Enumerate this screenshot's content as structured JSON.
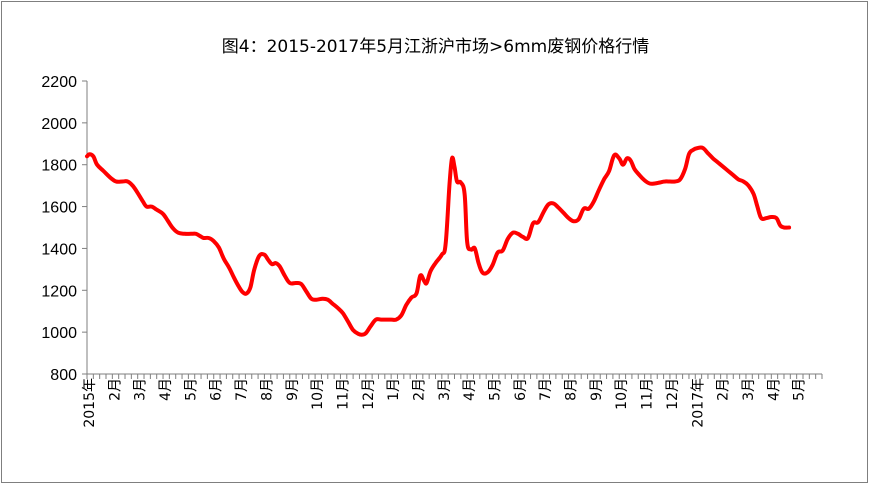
{
  "chart_data": {
    "type": "line",
    "title": "图4：2015-2017年5月江浙沪市场>6mm废钢价格行情",
    "xlabel": "",
    "ylabel": "",
    "ylim": [
      800,
      2200
    ],
    "yticks": [
      800,
      1000,
      1200,
      1400,
      1600,
      1800,
      2000,
      2200
    ],
    "x_labels": [
      "2015年",
      "2月",
      "3月",
      "4月",
      "5月",
      "6月",
      "7月",
      "8月",
      "9月",
      "10月",
      "11月",
      "12月",
      "1月",
      "2月",
      "3月",
      "4月",
      "5月",
      "6月",
      "7月",
      "8月",
      "9月",
      "10月",
      "11月",
      "12月",
      "2017年",
      "2月",
      "3月",
      "4月",
      "5月"
    ],
    "grid": false,
    "legend": "none",
    "colors": {
      "line": "#ff0000",
      "axis": "#7f7f7f"
    },
    "series": [
      {
        "values": [
          [
            0.0,
            1840
          ],
          [
            0.1,
            1850
          ],
          [
            0.25,
            1840
          ],
          [
            0.4,
            1800
          ],
          [
            0.65,
            1770
          ],
          [
            0.95,
            1735
          ],
          [
            1.15,
            1720
          ],
          [
            1.4,
            1720
          ],
          [
            1.6,
            1720
          ],
          [
            1.8,
            1700
          ],
          [
            2.0,
            1665
          ],
          [
            2.2,
            1625
          ],
          [
            2.35,
            1600
          ],
          [
            2.55,
            1600
          ],
          [
            2.75,
            1585
          ],
          [
            3.0,
            1565
          ],
          [
            3.2,
            1530
          ],
          [
            3.4,
            1495
          ],
          [
            3.6,
            1475
          ],
          [
            3.85,
            1470
          ],
          [
            4.1,
            1470
          ],
          [
            4.3,
            1470
          ],
          [
            4.45,
            1460
          ],
          [
            4.6,
            1450
          ],
          [
            4.8,
            1450
          ],
          [
            5.0,
            1435
          ],
          [
            5.2,
            1405
          ],
          [
            5.4,
            1350
          ],
          [
            5.6,
            1310
          ],
          [
            5.8,
            1260
          ],
          [
            6.0,
            1215
          ],
          [
            6.15,
            1190
          ],
          [
            6.3,
            1185
          ],
          [
            6.45,
            1215
          ],
          [
            6.6,
            1300
          ],
          [
            6.8,
            1365
          ],
          [
            7.0,
            1370
          ],
          [
            7.15,
            1345
          ],
          [
            7.3,
            1325
          ],
          [
            7.45,
            1330
          ],
          [
            7.6,
            1315
          ],
          [
            7.8,
            1270
          ],
          [
            8.0,
            1235
          ],
          [
            8.25,
            1235
          ],
          [
            8.45,
            1230
          ],
          [
            8.65,
            1195
          ],
          [
            8.85,
            1160
          ],
          [
            9.05,
            1155
          ],
          [
            9.3,
            1160
          ],
          [
            9.5,
            1155
          ],
          [
            9.7,
            1135
          ],
          [
            9.9,
            1115
          ],
          [
            10.1,
            1090
          ],
          [
            10.3,
            1050
          ],
          [
            10.5,
            1010
          ],
          [
            10.7,
            992
          ],
          [
            10.85,
            988
          ],
          [
            11.0,
            995
          ],
          [
            11.2,
            1030
          ],
          [
            11.4,
            1060
          ],
          [
            11.6,
            1060
          ],
          [
            11.8,
            1060
          ],
          [
            12.0,
            1060
          ],
          [
            12.2,
            1060
          ],
          [
            12.4,
            1080
          ],
          [
            12.6,
            1130
          ],
          [
            12.8,
            1165
          ],
          [
            13.0,
            1185
          ],
          [
            13.15,
            1270
          ],
          [
            13.3,
            1245
          ],
          [
            13.4,
            1235
          ],
          [
            13.55,
            1290
          ],
          [
            13.75,
            1330
          ],
          [
            14.0,
            1370
          ],
          [
            14.15,
            1420
          ],
          [
            14.3,
            1700
          ],
          [
            14.4,
            1830
          ],
          [
            14.5,
            1790
          ],
          [
            14.6,
            1720
          ],
          [
            14.75,
            1715
          ],
          [
            14.9,
            1660
          ],
          [
            15.0,
            1430
          ],
          [
            15.15,
            1395
          ],
          [
            15.3,
            1400
          ],
          [
            15.45,
            1330
          ],
          [
            15.6,
            1285
          ],
          [
            15.8,
            1285
          ],
          [
            16.0,
            1320
          ],
          [
            16.2,
            1380
          ],
          [
            16.4,
            1390
          ],
          [
            16.6,
            1445
          ],
          [
            16.8,
            1475
          ],
          [
            17.0,
            1470
          ],
          [
            17.2,
            1455
          ],
          [
            17.4,
            1450
          ],
          [
            17.6,
            1520
          ],
          [
            17.8,
            1525
          ],
          [
            18.0,
            1570
          ],
          [
            18.2,
            1610
          ],
          [
            18.4,
            1615
          ],
          [
            18.6,
            1595
          ],
          [
            18.8,
            1570
          ],
          [
            19.0,
            1545
          ],
          [
            19.2,
            1530
          ],
          [
            19.4,
            1540
          ],
          [
            19.6,
            1590
          ],
          [
            19.8,
            1590
          ],
          [
            20.0,
            1625
          ],
          [
            20.2,
            1680
          ],
          [
            20.4,
            1730
          ],
          [
            20.6,
            1770
          ],
          [
            20.8,
            1845
          ],
          [
            21.0,
            1830
          ],
          [
            21.15,
            1800
          ],
          [
            21.3,
            1830
          ],
          [
            21.45,
            1820
          ],
          [
            21.6,
            1780
          ],
          [
            21.8,
            1750
          ],
          [
            22.0,
            1725
          ],
          [
            22.2,
            1710
          ],
          [
            22.4,
            1710
          ],
          [
            22.6,
            1715
          ],
          [
            22.8,
            1720
          ],
          [
            23.0,
            1720
          ],
          [
            23.2,
            1720
          ],
          [
            23.4,
            1730
          ],
          [
            23.6,
            1780
          ],
          [
            23.75,
            1850
          ],
          [
            23.9,
            1870
          ],
          [
            24.1,
            1880
          ],
          [
            24.3,
            1880
          ],
          [
            24.5,
            1855
          ],
          [
            24.7,
            1830
          ],
          [
            24.9,
            1810
          ],
          [
            25.1,
            1790
          ],
          [
            25.3,
            1770
          ],
          [
            25.5,
            1750
          ],
          [
            25.7,
            1730
          ],
          [
            25.9,
            1720
          ],
          [
            26.1,
            1700
          ],
          [
            26.3,
            1660
          ],
          [
            26.45,
            1600
          ],
          [
            26.6,
            1545
          ],
          [
            26.8,
            1545
          ],
          [
            27.0,
            1550
          ],
          [
            27.2,
            1545
          ],
          [
            27.35,
            1510
          ],
          [
            27.5,
            1500
          ],
          [
            27.7,
            1500
          ]
        ]
      }
    ]
  }
}
